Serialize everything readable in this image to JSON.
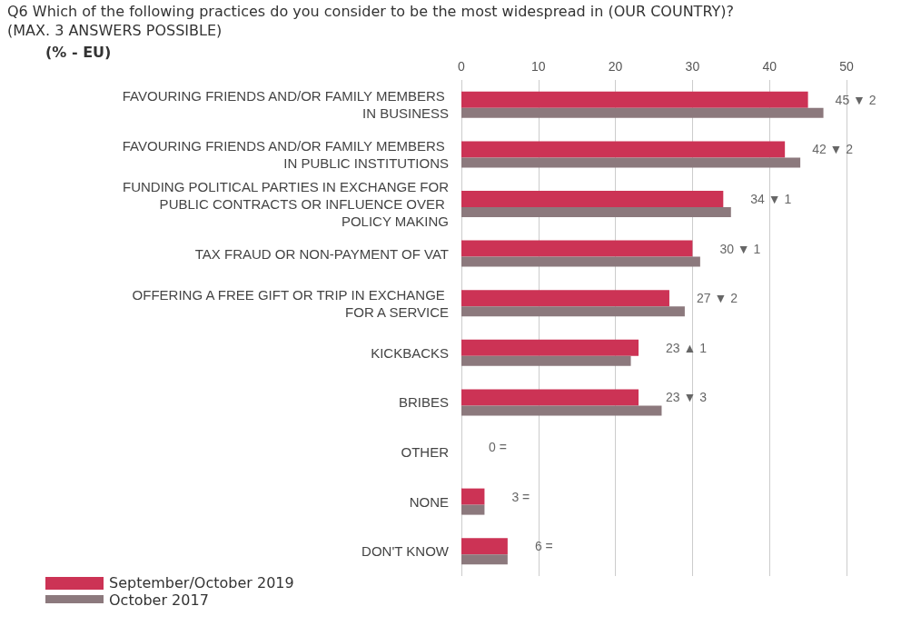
{
  "chart_data": {
    "type": "bar",
    "orientation": "horizontal",
    "title": "Q6 Which of the following practices do you consider to be the most widespread in (OUR COUNTRY)? (MAX. 3 ANSWERS POSSIBLE)",
    "subtitle": "(% - EU)",
    "categories": [
      "FAVOURING FRIENDS AND/OR FAMILY MEMBERS IN BUSINESS",
      "FAVOURING FRIENDS AND/OR FAMILY MEMBERS IN PUBLIC INSTITUTIONS",
      "FUNDING POLITICAL PARTIES IN EXCHANGE FOR PUBLIC CONTRACTS OR INFLUENCE OVER POLICY MAKING",
      "TAX FRAUD OR NON-PAYMENT OF VAT",
      "OFFERING A FREE GIFT OR TRIP IN EXCHANGE FOR A SERVICE",
      "KICKBACKS",
      "BRIBES",
      "OTHER",
      "NONE",
      "DON'T KNOW"
    ],
    "series": [
      {
        "name": "September/October 2019",
        "color": "#cc3355",
        "values": [
          45,
          42,
          34,
          30,
          27,
          23,
          23,
          0,
          3,
          6
        ],
        "value_labels": [
          "45 ▼ 2",
          "42 ▼ 2",
          "34 ▼ 1",
          "30 ▼ 1",
          "27 ▼ 2",
          "23 ▲ 1",
          "23 ▼ 3",
          "0 =",
          "3 =",
          "6 ="
        ]
      },
      {
        "name": "October 2017",
        "color": "#8c797d",
        "values": [
          47,
          44,
          35,
          31,
          29,
          22,
          26,
          0,
          3,
          6
        ]
      }
    ],
    "xlim": [
      0,
      50
    ],
    "xticks": [
      0,
      10,
      20,
      30,
      40,
      50
    ],
    "grid": "x",
    "legend": "bottom left"
  }
}
